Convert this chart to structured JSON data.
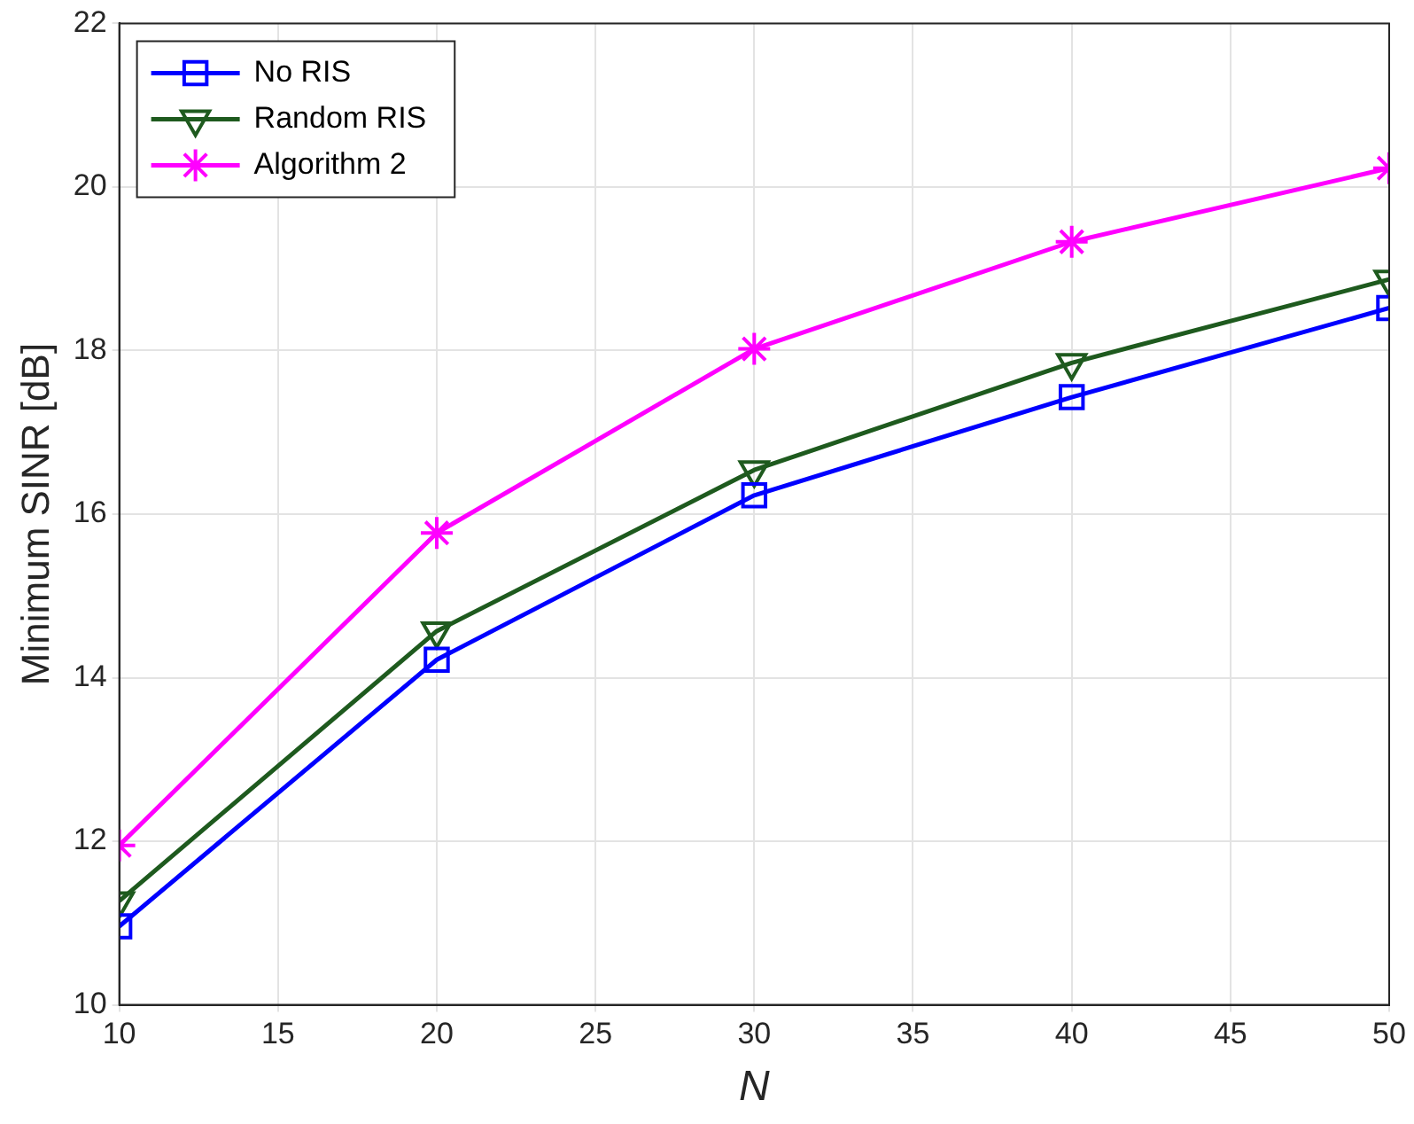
{
  "chart_data": {
    "type": "line",
    "xlabel": "N",
    "ylabel": "Minimum SINR [dB]",
    "x": [
      10,
      20,
      30,
      40,
      50
    ],
    "xlim": [
      10,
      50
    ],
    "xticks": [
      10,
      15,
      20,
      25,
      30,
      35,
      40,
      45,
      50
    ],
    "ylim": [
      10,
      22
    ],
    "yticks": [
      10,
      12,
      14,
      16,
      18,
      20,
      22
    ],
    "grid": true,
    "legend": "top left",
    "line_style": "solid",
    "series": [
      {
        "name": "No RIS",
        "color": "#0000ff",
        "marker": "square",
        "values": [
          10.96,
          14.22,
          16.23,
          17.43,
          18.52
        ]
      },
      {
        "name": "Random RIS",
        "color": "#1e5a1e",
        "marker": "triangle",
        "values": [
          11.27,
          14.57,
          16.54,
          17.85,
          18.87
        ]
      },
      {
        "name": "Algorithm 2",
        "color": "#ff00ff",
        "marker": "cross",
        "values": [
          11.95,
          15.77,
          18.02,
          19.33,
          20.23
        ]
      }
    ]
  }
}
